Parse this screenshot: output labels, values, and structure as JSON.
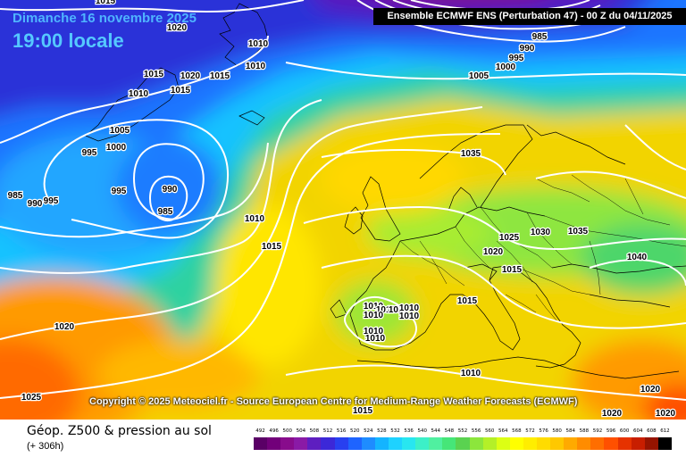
{
  "header": {
    "date": "Dimanche 16 novembre 2025",
    "time": "19:00 locale",
    "run": "Ensemble ECMWF ENS  (Perturbation 47)  -  00 Z du 04/11/2025"
  },
  "copyright": "Copyright © 2025 Meteociel.fr - Source European Centre for Medium-Range Weather Forecasts (ECMWF)",
  "footer": {
    "param": "Géop. Z500 & pression au sol",
    "lead": "(+ 306h)"
  },
  "legend": {
    "values": [
      "492",
      "496",
      "500",
      "504",
      "508",
      "512",
      "516",
      "520",
      "524",
      "528",
      "532",
      "536",
      "540",
      "544",
      "548",
      "552",
      "556",
      "560",
      "564",
      "568",
      "572",
      "576",
      "580",
      "584",
      "588",
      "592",
      "596",
      "600",
      "604",
      "608",
      "612"
    ],
    "colors": [
      "#5a0066",
      "#72007a",
      "#880c8c",
      "#8a1aa6",
      "#5e1ec0",
      "#3c28d8",
      "#2840f0",
      "#1e64ff",
      "#1e8cff",
      "#14b4ff",
      "#1ed2ff",
      "#28e6f0",
      "#3cf0c8",
      "#50f0a0",
      "#46e678",
      "#5ad250",
      "#8ce63c",
      "#b4f028",
      "#dcff14",
      "#ffff00",
      "#ffee00",
      "#ffdc00",
      "#ffc800",
      "#ffaa00",
      "#ff8c00",
      "#ff6e00",
      "#ff5000",
      "#e63200",
      "#c81e00",
      "#961400",
      "#000000"
    ]
  },
  "isobars": [
    "1015",
    "1020",
    "1010",
    "1010",
    "1015",
    "1020",
    "1015",
    "1010",
    "1015",
    "1005",
    "1000",
    "995",
    "985",
    "990",
    "995",
    "995",
    "990",
    "985",
    "1010",
    "1015",
    "1020",
    "1025",
    "1015",
    "1010",
    "1010",
    "1010",
    "1010",
    "1010",
    "1010",
    "1010",
    "1010",
    "1015",
    "1010",
    "985",
    "990",
    "995",
    "1000",
    "1005",
    "1035",
    "1025",
    "1030",
    "1035",
    "1020",
    "1015",
    "1040",
    "1020",
    "1020",
    "1020"
  ]
}
